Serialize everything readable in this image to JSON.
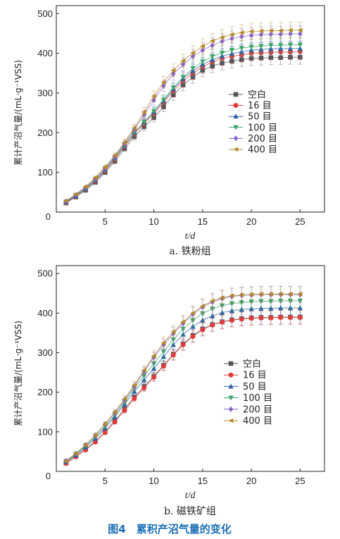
{
  "figure_caption": "图4　累积产沼气量的变化",
  "chart_data": [
    {
      "type": "line",
      "subtitle": "a. 铁粉组",
      "ylabel": "累计产沼气量/(mL·g⁻¹VSS)",
      "xlabel": "t/d",
      "xlim": [
        0,
        27.5
      ],
      "ylim": [
        0,
        520
      ],
      "xticks": [
        5,
        10,
        15,
        20,
        25
      ],
      "yticks": [
        100,
        200,
        300,
        400,
        500
      ],
      "origin_label": "0",
      "error_bars": true,
      "legend_position": "center-right",
      "x": [
        1,
        2,
        3,
        4,
        5,
        6,
        7,
        8,
        9,
        10,
        11,
        12,
        13,
        14,
        15,
        16,
        17,
        18,
        19,
        20,
        21,
        22,
        23,
        24,
        25
      ],
      "series": [
        {
          "name": "空白",
          "color": "#555555",
          "marker": "square",
          "values": [
            23,
            38,
            55,
            75,
            100,
            128,
            160,
            190,
            215,
            238,
            265,
            295,
            320,
            340,
            357,
            368,
            375,
            380,
            384,
            387,
            388,
            389,
            389,
            390,
            390
          ]
        },
        {
          "name": "16 目",
          "color": "#e03c3c",
          "marker": "circle",
          "values": [
            24,
            40,
            58,
            78,
            104,
            133,
            166,
            197,
            223,
            248,
            275,
            305,
            330,
            350,
            366,
            378,
            387,
            392,
            396,
            400,
            401,
            402,
            403,
            403,
            404
          ]
        },
        {
          "name": "50 目",
          "color": "#2e5fa3",
          "marker": "triangle-up",
          "values": [
            25,
            41,
            59,
            80,
            106,
            136,
            168,
            200,
            226,
            252,
            280,
            310,
            336,
            356,
            372,
            384,
            393,
            399,
            404,
            408,
            410,
            411,
            412,
            412,
            412
          ]
        },
        {
          "name": "100 目",
          "color": "#3aa567",
          "marker": "triangle-down",
          "values": [
            26,
            42,
            60,
            81,
            107,
            137,
            169,
            200,
            227,
            254,
            283,
            313,
            340,
            362,
            379,
            392,
            401,
            408,
            413,
            416,
            418,
            420,
            420,
            421,
            421
          ]
        },
        {
          "name": "200 目",
          "color": "#8a62c7",
          "marker": "diamond",
          "values": [
            27,
            43,
            62,
            84,
            110,
            140,
            173,
            208,
            245,
            282,
            318,
            348,
            372,
            392,
            408,
            420,
            430,
            437,
            442,
            445,
            447,
            448,
            448,
            449,
            449
          ]
        },
        {
          "name": "400 目",
          "color": "#b78a2a",
          "marker": "triangle-left",
          "values": [
            28,
            45,
            64,
            87,
            114,
            143,
            176,
            212,
            252,
            292,
            327,
            357,
            381,
            401,
            418,
            431,
            440,
            447,
            452,
            455,
            456,
            457,
            457,
            458,
            458
          ]
        }
      ]
    },
    {
      "type": "line",
      "subtitle": "b. 磁铁矿组",
      "ylabel": "累计产沼气量/(mL·g⁻¹VSS)",
      "xlabel": "t/d",
      "xlim": [
        0,
        27.5
      ],
      "ylim": [
        0,
        520
      ],
      "xticks": [
        5,
        10,
        15,
        20,
        25
      ],
      "yticks": [
        100,
        200,
        300,
        400,
        500
      ],
      "origin_label": "0",
      "error_bars": true,
      "legend_position": "lower-right",
      "x": [
        1,
        2,
        3,
        4,
        5,
        6,
        7,
        8,
        9,
        10,
        11,
        12,
        13,
        14,
        15,
        16,
        17,
        18,
        19,
        20,
        21,
        22,
        23,
        24,
        25
      ],
      "series": [
        {
          "name": "空白",
          "color": "#555555",
          "marker": "square",
          "values": [
            21,
            38,
            56,
            76,
            100,
            128,
            158,
            188,
            214,
            240,
            268,
            296,
            322,
            343,
            360,
            371,
            378,
            383,
            386,
            388,
            389,
            389,
            390,
            390,
            390
          ]
        },
        {
          "name": "16 目",
          "color": "#e03c3c",
          "marker": "circle",
          "values": [
            20,
            37,
            54,
            74,
            98,
            125,
            154,
            184,
            211,
            238,
            266,
            294,
            320,
            341,
            358,
            370,
            377,
            382,
            385,
            387,
            388,
            388,
            389,
            389,
            389
          ]
        },
        {
          "name": "50 目",
          "color": "#2e5fa3",
          "marker": "triangle-up",
          "values": [
            24,
            41,
            61,
            83,
            109,
            138,
            170,
            202,
            231,
            260,
            290,
            320,
            346,
            366,
            382,
            393,
            401,
            406,
            409,
            411,
            412,
            412,
            413,
            413,
            413
          ]
        },
        {
          "name": "100 目",
          "color": "#3aa567",
          "marker": "triangle-down",
          "values": [
            25,
            43,
            64,
            87,
            114,
            143,
            176,
            210,
            242,
            272,
            303,
            333,
            360,
            382,
            399,
            411,
            419,
            424,
            427,
            429,
            430,
            430,
            431,
            431,
            431
          ]
        },
        {
          "name": "200 目",
          "color": "#8a62c7",
          "marker": "diamond",
          "values": [
            27,
            45,
            67,
            91,
            119,
            148,
            181,
            215,
            252,
            288,
            320,
            348,
            374,
            397,
            415,
            428,
            437,
            442,
            445,
            446,
            447,
            447,
            447,
            447,
            447
          ]
        },
        {
          "name": "400 目",
          "color": "#b78a2a",
          "marker": "triangle-left",
          "values": [
            26,
            45,
            67,
            92,
            120,
            150,
            183,
            218,
            256,
            292,
            325,
            353,
            378,
            400,
            418,
            431,
            439,
            444,
            446,
            447,
            448,
            448,
            448,
            448,
            448
          ]
        }
      ]
    }
  ]
}
